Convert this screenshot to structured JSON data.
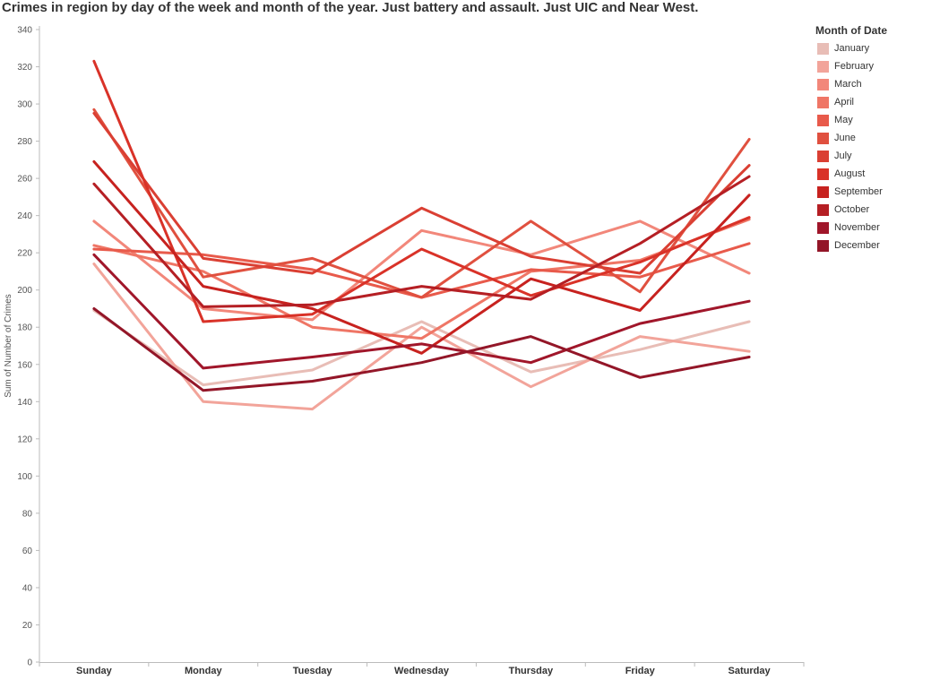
{
  "chart_data": {
    "type": "line",
    "title": "Crimes in region by day of the week and month of the year.  Just battery and assault.   Just UIC and Near West.",
    "xlabel": "",
    "ylabel": "Sum of Number of Crimes",
    "categories": [
      "Sunday",
      "Monday",
      "Tuesday",
      "Wednesday",
      "Thursday",
      "Friday",
      "Saturday"
    ],
    "ylim": [
      0,
      340
    ],
    "yticks": [
      "0",
      "20",
      "40",
      "60",
      "80",
      "100",
      "120",
      "140",
      "160",
      "180",
      "200",
      "220",
      "240",
      "260",
      "280",
      "300",
      "320",
      "340"
    ],
    "grid": false,
    "legend_title": "Month of Date",
    "legend_position": "right",
    "series": [
      {
        "name": "January",
        "color": "#e8bdb6",
        "values": [
          189,
          149,
          157,
          183,
          156,
          168,
          183
        ]
      },
      {
        "name": "February",
        "color": "#f2a49a",
        "values": [
          214,
          140,
          136,
          180,
          148,
          175,
          167
        ]
      },
      {
        "name": "March",
        "color": "#f2877a",
        "values": [
          237,
          190,
          184,
          232,
          219,
          237,
          209
        ]
      },
      {
        "name": "April",
        "color": "#ef7666",
        "values": [
          224,
          210,
          180,
          174,
          210,
          216,
          238
        ]
      },
      {
        "name": "May",
        "color": "#e85a4b",
        "values": [
          222,
          219,
          211,
          196,
          211,
          207,
          225
        ]
      },
      {
        "name": "June",
        "color": "#e0503f",
        "values": [
          297,
          207,
          217,
          196,
          237,
          199,
          281
        ]
      },
      {
        "name": "July",
        "color": "#da3f33",
        "values": [
          295,
          217,
          209,
          244,
          218,
          209,
          267
        ]
      },
      {
        "name": "August",
        "color": "#d93228",
        "values": [
          323,
          183,
          187,
          222,
          197,
          215,
          239
        ]
      },
      {
        "name": "September",
        "color": "#c7221f",
        "values": [
          269,
          202,
          190,
          166,
          206,
          189,
          251
        ]
      },
      {
        "name": "October",
        "color": "#b51f24",
        "values": [
          257,
          191,
          192,
          202,
          195,
          225,
          261
        ]
      },
      {
        "name": "November",
        "color": "#a0162a",
        "values": [
          219,
          158,
          164,
          171,
          161,
          182,
          194
        ]
      },
      {
        "name": "December",
        "color": "#931628",
        "values": [
          190,
          146,
          151,
          161,
          175,
          153,
          164
        ]
      }
    ]
  }
}
